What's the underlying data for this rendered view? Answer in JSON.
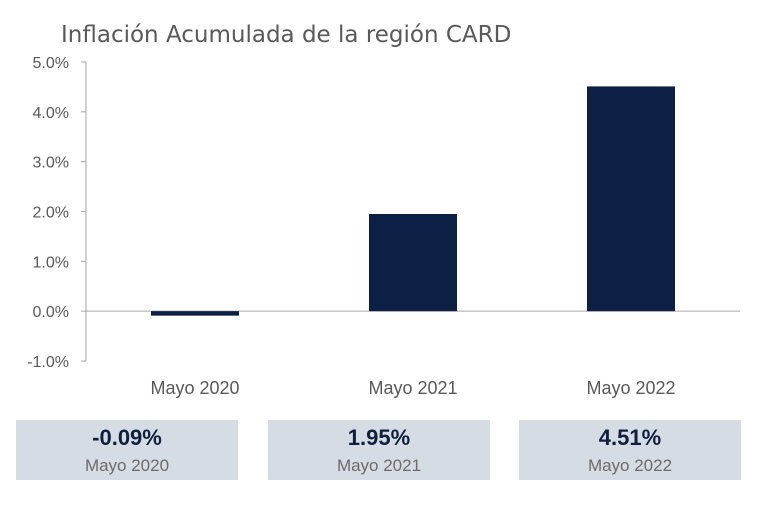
{
  "chart_data": {
    "type": "bar",
    "title": "Inflación Acumulada de la región CARD",
    "categories": [
      "Mayo 2020",
      "Mayo 2021",
      "Mayo 2022"
    ],
    "values": [
      -0.09,
      1.95,
      4.51
    ],
    "unit": "%",
    "ylim": [
      -1.0,
      5.0
    ],
    "yticks": [
      "5.0%",
      "4.0%",
      "3.0%",
      "2.0%",
      "1.0%",
      "0.0%",
      "-1.0%"
    ],
    "ytick_values": [
      5.0,
      4.0,
      3.0,
      2.0,
      1.0,
      0.0,
      -1.0
    ],
    "grid": false,
    "legend": "none",
    "bar_color": "#0c1f44"
  },
  "summary": [
    {
      "value": "-0.09%",
      "label": "Mayo 2020"
    },
    {
      "value": "1.95%",
      "label": "Mayo 2021"
    },
    {
      "value": "4.51%",
      "label": "Mayo 2022"
    }
  ],
  "colors": {
    "bar": "#0c1f44",
    "summary_bg": "#d6dce4",
    "summary_value": "#0f1f3d",
    "axis": "#a6a6a6"
  }
}
